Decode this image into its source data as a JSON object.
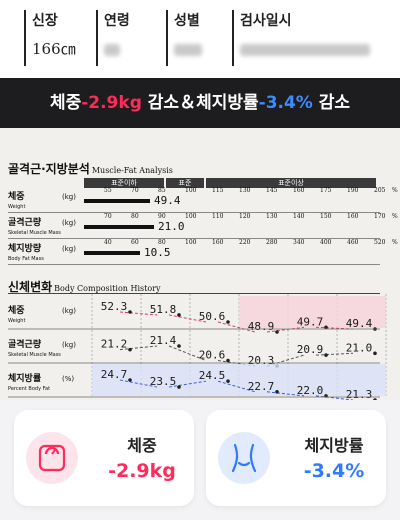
{
  "info": {
    "height_label": "신장",
    "height_value": "166㎝",
    "age_label": "연령",
    "gender_label": "성별",
    "date_label": "검사일시"
  },
  "banner": {
    "part1": "체중",
    "weight_change": "-2.9kg",
    "part2": " 감소＆체지방률",
    "fat_change": "-3.4%",
    "part3": " 감소"
  },
  "analysis": {
    "title": "골격근·지방분석",
    "title_en": "Muscle-Fat Analysis",
    "header": {
      "under": "표준이하",
      "standard": "표준",
      "over": "표준이상"
    },
    "rows": [
      {
        "label": "체중",
        "sub": "Weight",
        "unit": "(kg)",
        "ticks": [
          "55",
          "70",
          "85",
          "100",
          "115",
          "130",
          "145",
          "160",
          "175",
          "190",
          "205"
        ],
        "tick_unit": "%",
        "value": "49.4",
        "fill": 0.235
      },
      {
        "label": "골격근량",
        "sub": "Skeletal Muscle Mass",
        "unit": "(kg)",
        "ticks": [
          "70",
          "80",
          "90",
          "100",
          "110",
          "120",
          "130",
          "140",
          "150",
          "160",
          "170"
        ],
        "tick_unit": "%",
        "value": "21.0",
        "fill": 0.25
      },
      {
        "label": "체지방량",
        "sub": "Body Fat Mass",
        "unit": "(kg)",
        "ticks": [
          "40",
          "60",
          "80",
          "100",
          "160",
          "220",
          "280",
          "340",
          "400",
          "460",
          "520"
        ],
        "tick_unit": "%",
        "value": "10.5",
        "fill": 0.2
      }
    ]
  },
  "history": {
    "title": "신체변화",
    "title_en": "Body Composition History",
    "rows": [
      {
        "label": "체중",
        "sub": "Weight",
        "unit": "(kg)",
        "values": [
          "52.3",
          "51.8",
          "50.6",
          "48.9",
          "49.7",
          "49.4"
        ]
      },
      {
        "label": "골격근량",
        "sub": "Skeletal Muscle Mass",
        "unit": "(kg)",
        "values": [
          "21.2",
          "21.4",
          "20.6",
          "20.3",
          "20.9",
          "21.0"
        ]
      },
      {
        "label": "체지방률",
        "sub": "Percent Body Fat",
        "unit": "(%)",
        "values": [
          "24.7",
          "23.5",
          "24.5",
          "22.7",
          "22.0",
          "21.3"
        ]
      }
    ]
  },
  "cards": [
    {
      "label": "체중",
      "value": "-2.9kg",
      "icon": "scale-icon",
      "color": "#ff2b5a",
      "bg": "#fde4ea"
    },
    {
      "label": "체지방률",
      "value": "-3.4%",
      "icon": "waist-icon",
      "color": "#2f7bff",
      "bg": "#e2ebfd"
    }
  ]
}
